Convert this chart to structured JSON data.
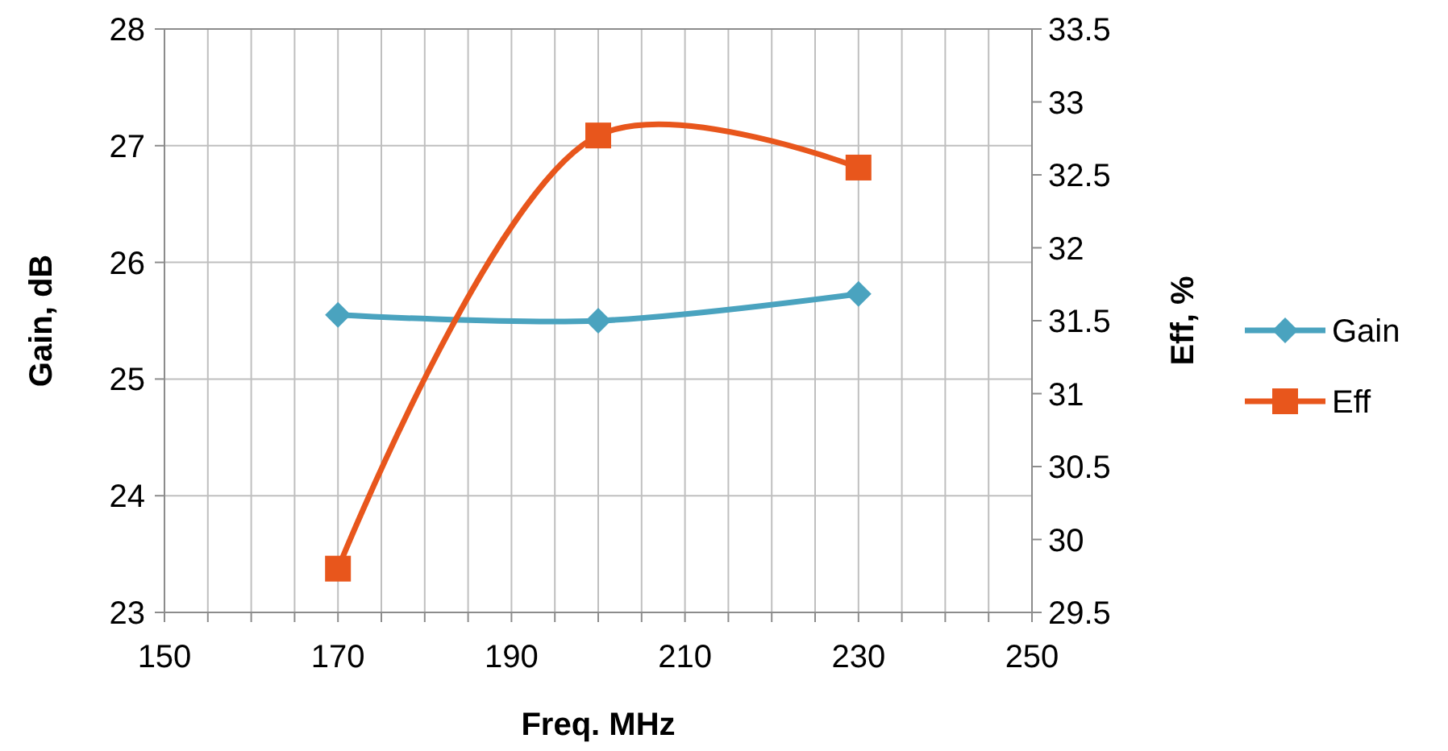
{
  "chart_data": {
    "type": "line",
    "xlabel": "Freq. MHz",
    "ylabel": "Gain, dB",
    "y2label": "Eff, %",
    "x": [
      170,
      200,
      230
    ],
    "xlim": [
      150,
      250
    ],
    "xticks": [
      150,
      {
        "value": 155,
        "label": null
      },
      {
        "value": 160,
        "label": null
      },
      {
        "value": 165,
        "label": null
      },
      170,
      {
        "value": 175,
        "label": null
      },
      {
        "value": 180,
        "label": null
      },
      {
        "value": 185,
        "label": null
      },
      190,
      {
        "value": 195,
        "label": null
      },
      {
        "value": 200,
        "label": null
      },
      {
        "value": 205,
        "label": null
      },
      210,
      {
        "value": 215,
        "label": null
      },
      {
        "value": 220,
        "label": null
      },
      {
        "value": 225,
        "label": null
      },
      230,
      {
        "value": 235,
        "label": null
      },
      {
        "value": 240,
        "label": null
      },
      {
        "value": 245,
        "label": null
      },
      250
    ],
    "ylim": [
      23,
      28
    ],
    "yticks": [
      23,
      24,
      25,
      26,
      27,
      28
    ],
    "y2lim": [
      29.5,
      33.5
    ],
    "y2ticks": [
      29.5,
      30,
      30.5,
      31,
      31.5,
      32,
      32.5,
      33,
      33.5
    ],
    "grid": true,
    "legend": "right",
    "series": [
      {
        "name": "Gain",
        "color": "#4aa3bf",
        "values": [
          25.55,
          25.5,
          25.73
        ],
        "marker": "diamond"
      },
      {
        "name": "Eff",
        "color": "#e8561c",
        "values": [
          29.8,
          32.77,
          32.55
        ],
        "axis": "y2",
        "marker": "square"
      }
    ]
  }
}
